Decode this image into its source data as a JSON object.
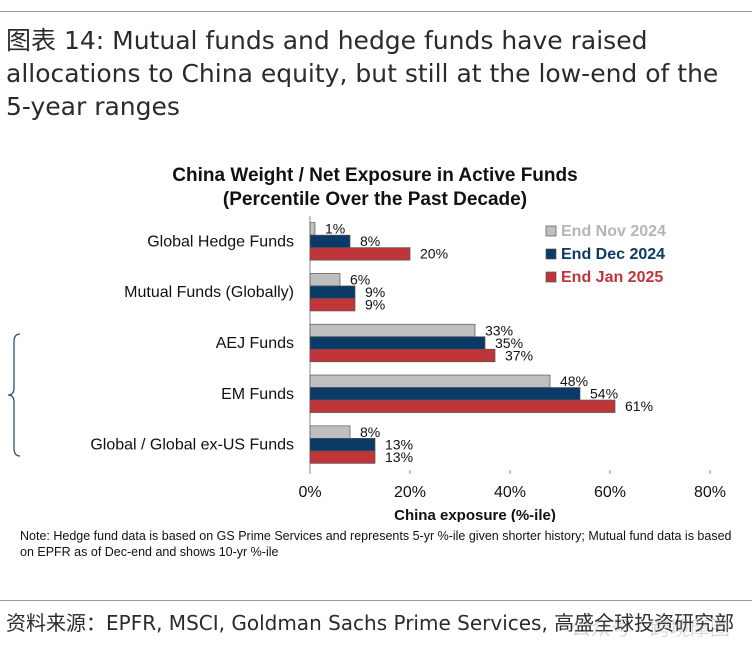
{
  "headline": "图表 14: Mutual funds and hedge funds have raised allocations to China equity, but still at the low-end of the 5-year ranges",
  "source": "资料来源：EPFR, MSCI, Goldman Sachs Prime Services, 高盛全球投资研究部",
  "watermark": "公众号 · 跨境摩图",
  "note": "Note: Hedge fund data is based on GS Prime Services and represents 5-yr %-ile given shorter history; Mutual fund data is based on EPFR as of Dec-end and shows 10-yr %-ile",
  "colors": {
    "series1": "#bfbfbf",
    "series2": "#0b3a66",
    "series3": "#c0353a"
  },
  "chart_data": {
    "type": "bar",
    "orientation": "horizontal",
    "title": "China Weight / Net Exposure in Active Funds",
    "subtitle": "(Percentile Over the Past Decade)",
    "xlabel": "China exposure  (%-ile)",
    "ylabel": "",
    "xlim": [
      0,
      80
    ],
    "xticks": [
      "0%",
      "20%",
      "40%",
      "60%",
      "80%"
    ],
    "legend_position": "top-right",
    "categories": [
      "Global Hedge Funds",
      "Mutual Funds (Globally)",
      "AEJ Funds",
      "EM Funds",
      "Global / Global ex-US Funds"
    ],
    "series": [
      {
        "name": "End Nov 2024",
        "values": [
          1,
          6,
          33,
          48,
          8
        ],
        "labels": [
          "1%",
          "6%",
          "33%",
          "48%",
          "8%"
        ]
      },
      {
        "name": "End Dec 2024",
        "values": [
          8,
          9,
          35,
          54,
          13
        ],
        "labels": [
          "8%",
          "9%",
          "35%",
          "54%",
          "13%"
        ]
      },
      {
        "name": "End Jan 2025",
        "values": [
          20,
          9,
          37,
          61,
          13
        ],
        "labels": [
          "20%",
          "9%",
          "37%",
          "61%",
          "13%"
        ]
      }
    ]
  }
}
